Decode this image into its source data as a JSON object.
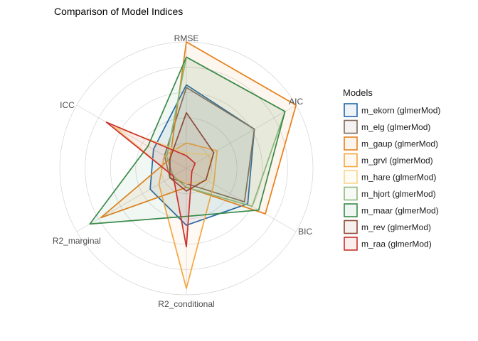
{
  "chart_data": {
    "type": "radar",
    "title": "Comparison of Model Indices",
    "axes": [
      "AIC",
      "BIC",
      "R2_conditional",
      "R2_marginal",
      "ICC",
      "RMSE"
    ],
    "rlim": [
      0,
      1
    ],
    "grid": true,
    "legend": {
      "title": "Models",
      "placement": "right"
    },
    "series": [
      {
        "name": "m_ekorn (glmerMod)",
        "color": "#2166ac",
        "values": [
          0.62,
          0.56,
          0.45,
          0.33,
          0.3,
          0.66
        ]
      },
      {
        "name": "m_elg (glmerMod)",
        "color": "#7f6a5d",
        "values": [
          0.62,
          0.53,
          0.12,
          0.15,
          0.2,
          0.64
        ]
      },
      {
        "name": "m_gaup (glmerMod)",
        "color": "#e6801a",
        "values": [
          1.0,
          0.72,
          0.15,
          0.78,
          0.15,
          1.0
        ]
      },
      {
        "name": "m_grvl (glmerMod)",
        "color": "#f5a742",
        "values": [
          0.28,
          0.25,
          0.95,
          0.25,
          0.2,
          0.2
        ]
      },
      {
        "name": "m_hare (glmerMod)",
        "color": "#fad48b",
        "values": [
          0.22,
          0.2,
          0.12,
          0.12,
          0.66,
          0.12
        ]
      },
      {
        "name": "m_hjort (glmerMod)",
        "color": "#8fb87a",
        "values": [
          0.9,
          0.6,
          0.15,
          0.12,
          0.18,
          0.88
        ]
      },
      {
        "name": "m_maar (glmerMod)",
        "color": "#3a8a4a",
        "values": [
          0.9,
          0.66,
          0.38,
          0.88,
          0.35,
          0.88
        ]
      },
      {
        "name": "m_rev (glmerMod)",
        "color": "#8b4a38",
        "values": [
          0.25,
          0.18,
          0.18,
          0.15,
          0.15,
          0.44
        ]
      },
      {
        "name": "m_raa (glmerMod)",
        "color": "#c9302c",
        "values": [
          0.08,
          0.05,
          0.62,
          0.12,
          0.73,
          0.1
        ]
      }
    ]
  }
}
